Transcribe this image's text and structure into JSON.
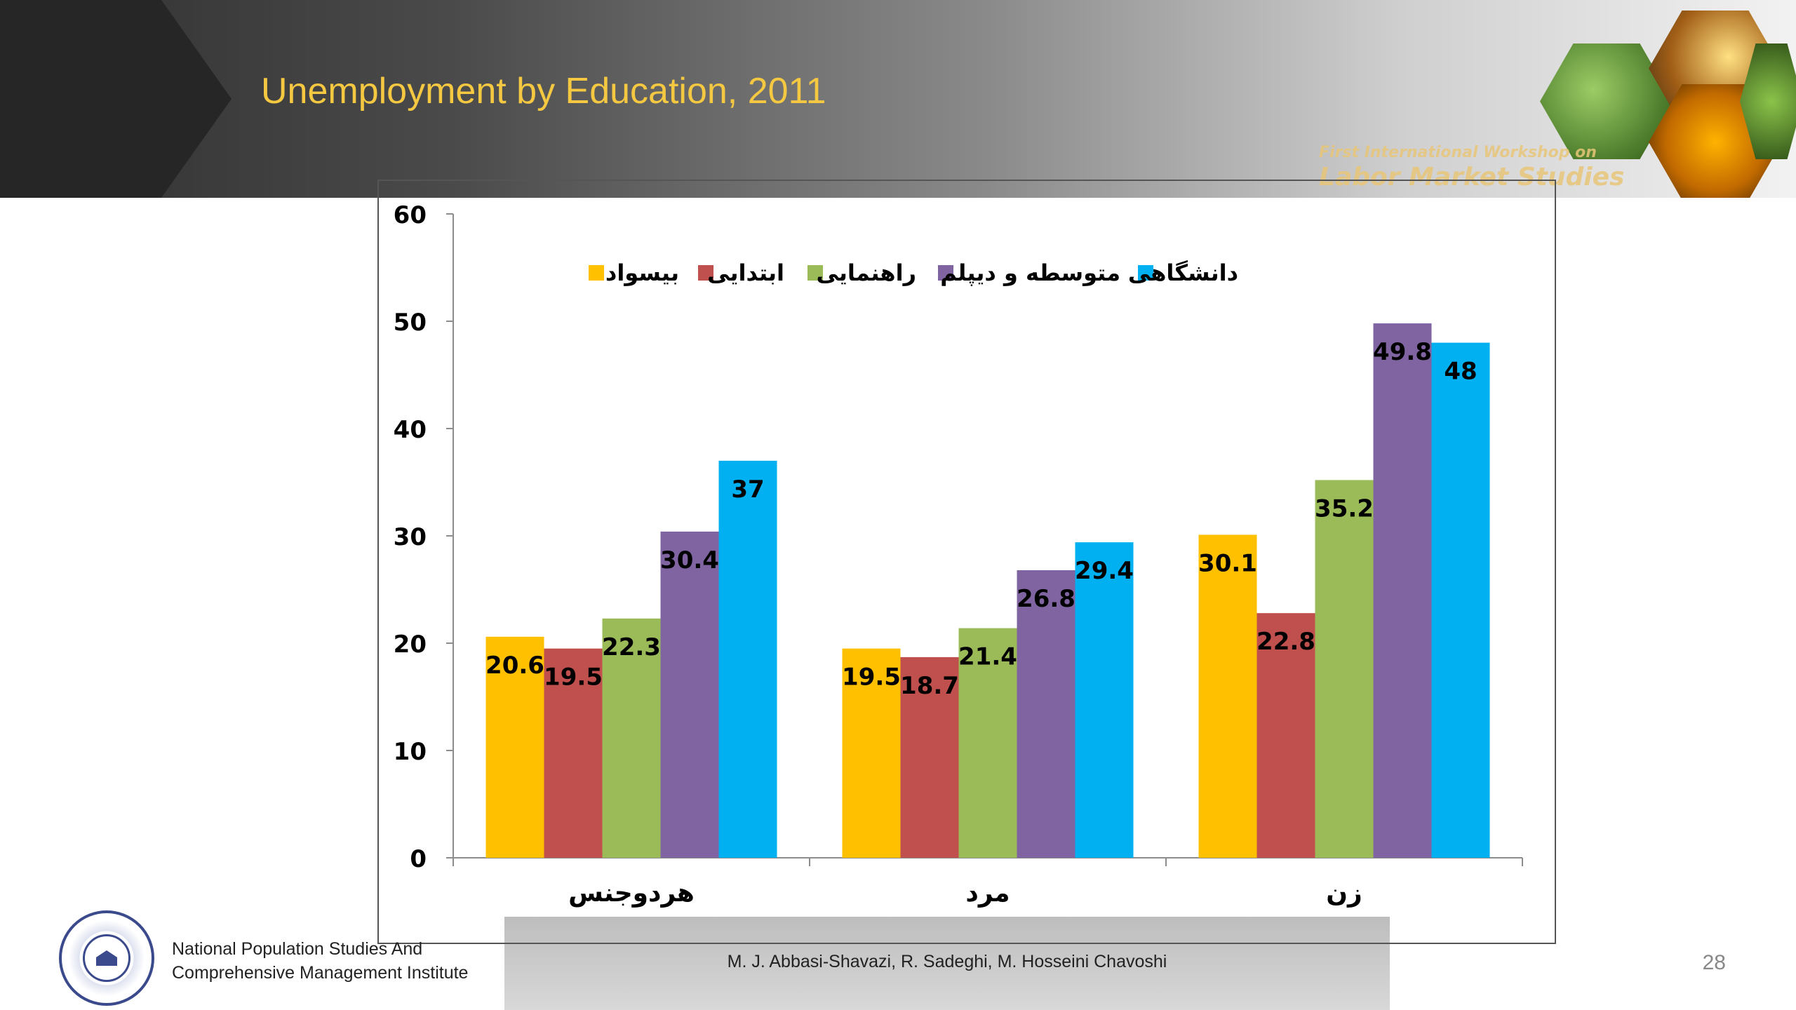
{
  "slide": {
    "title": "Unemployment by Education, 2011",
    "workshop_line1": "First International Workshop on",
    "workshop_line2": "Labor Market Studies",
    "institute_line1": "National Population Studies And",
    "institute_line2": "Comprehensive Management Institute",
    "authors": "M. J. Abbasi-Shavazi, R. Sadeghi, M. Hosseini Chavoshi",
    "page_number": "28",
    "title_color": "#f5c842"
  },
  "chart_data": {
    "type": "bar",
    "title": "",
    "xlabel": "",
    "ylabel": "",
    "categories": [
      "هردوجنس",
      "مرد",
      "زن"
    ],
    "ylim": [
      0,
      60
    ],
    "yticks": [
      "0",
      "10",
      "20",
      "30",
      "40",
      "50",
      "60"
    ],
    "grid": false,
    "legend_position": "top",
    "series": [
      {
        "name": "بیسواد",
        "color": "#ffc000",
        "values": [
          20.6,
          19.5,
          30.1
        ],
        "labels": [
          "20.6",
          "19.5",
          "30.1"
        ]
      },
      {
        "name": "ابتدایی",
        "color": "#c0504d",
        "values": [
          19.5,
          18.7,
          22.8
        ],
        "labels": [
          "19.5",
          "18.7",
          "22.8"
        ]
      },
      {
        "name": "راهنمایی",
        "color": "#9bbb59",
        "values": [
          22.3,
          21.4,
          35.2
        ],
        "labels": [
          "22.3",
          "21.4",
          "35.2"
        ]
      },
      {
        "name": "متوسطه و دیپلم",
        "color": "#8064a2",
        "values": [
          30.4,
          26.8,
          49.8
        ],
        "labels": [
          "30.4",
          "26.8",
          "49.8"
        ]
      },
      {
        "name": "دانشگاهی",
        "color": "#00b0f0",
        "values": [
          37,
          29.4,
          48
        ],
        "labels": [
          "37",
          "29.4",
          "48"
        ]
      }
    ]
  }
}
